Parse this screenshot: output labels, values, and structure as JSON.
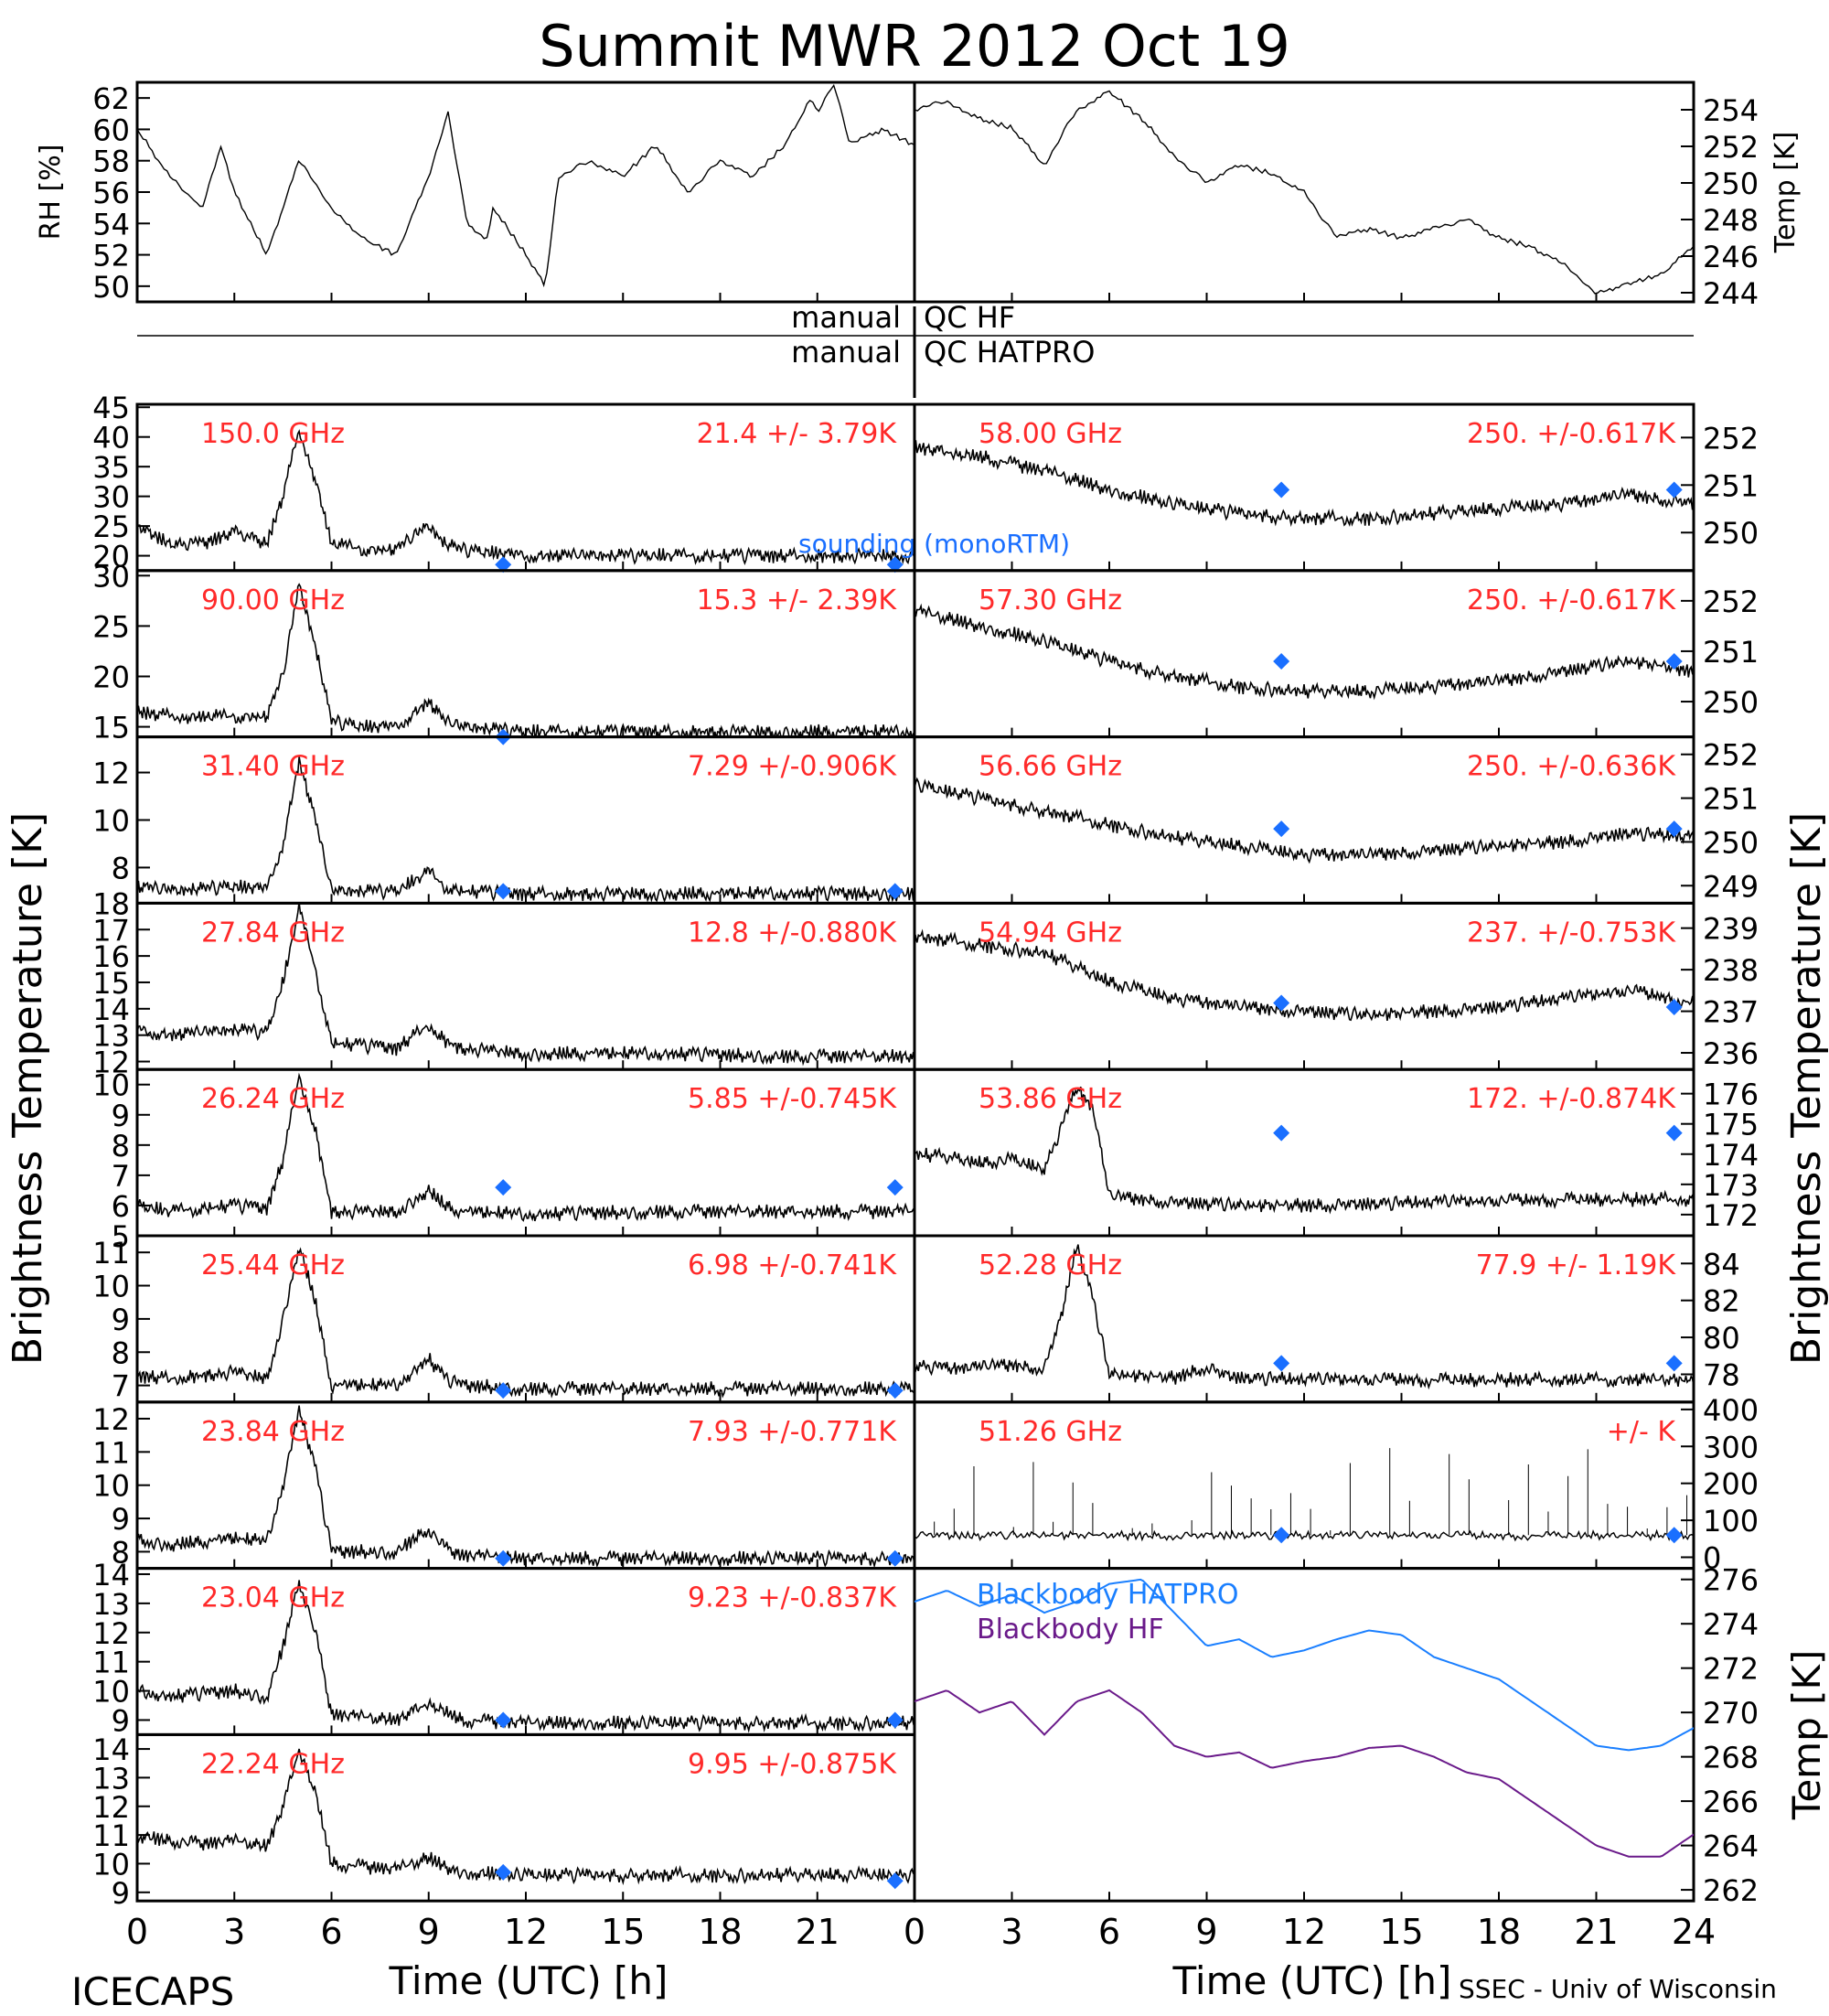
{
  "title": "Summit MWR 2012 Oct 19",
  "footer_left": "ICECAPS",
  "footer_right": "SSEC - Univ of Wisconsin",
  "xlabel": "Time (UTC) [h]",
  "left_ylabel": "Brightness Temperature [K]",
  "right_ylabel": "Brightness Temperature [K]",
  "qc_left": [
    "manual",
    "manual"
  ],
  "qc_right": [
    "QC HF",
    "QC HATPRO"
  ],
  "colors": {
    "label_red": "#ff2a2a",
    "sounding_blue": "#1a6fff",
    "hatpro_blue": "#1a7fff",
    "hf_purple": "#6a1a8a",
    "trace": "#000000"
  },
  "chart_data": [
    {
      "type": "line",
      "panel": "rh",
      "ylabel": "RH [%]",
      "ylim": [
        49,
        63
      ],
      "yticks": [
        50,
        52,
        54,
        56,
        58,
        60,
        62
      ],
      "xlim": [
        0,
        24
      ],
      "x": [
        0,
        1,
        2,
        2.6,
        3,
        4,
        5,
        6,
        7,
        8,
        9,
        9.6,
        10.2,
        10.8,
        11,
        12,
        12.6,
        13,
        14,
        15,
        16,
        17,
        18,
        19,
        20,
        20.8,
        21,
        21.5,
        22,
        23,
        24
      ],
      "values": [
        60,
        57,
        55,
        59,
        56,
        52,
        58,
        55,
        53,
        52,
        57,
        61,
        54,
        53,
        55,
        52,
        50,
        57,
        58,
        57,
        59,
        56,
        58,
        57,
        59,
        62,
        61,
        63,
        59,
        60,
        59
      ]
    },
    {
      "type": "line",
      "panel": "temp",
      "ylabel": "Temp [K]",
      "ylim": [
        243.5,
        255.5
      ],
      "yticks": [
        244,
        246,
        248,
        250,
        252,
        254
      ],
      "xlim": [
        0,
        24
      ],
      "x": [
        0,
        1,
        2,
        3,
        4,
        5,
        6,
        7,
        8,
        9,
        10,
        11,
        12,
        13,
        14,
        15,
        16,
        17,
        18,
        19,
        20,
        21,
        22,
        23,
        24
      ],
      "values": [
        254,
        254.5,
        253.5,
        253,
        251,
        254,
        255,
        253.5,
        251.5,
        250,
        251,
        250.5,
        249.5,
        247,
        247.5,
        247,
        247.5,
        248,
        247,
        246.5,
        245.5,
        244,
        244.5,
        245,
        246.5
      ]
    },
    {
      "type": "line",
      "channel": "150.0 GHz",
      "stats": "21.4 +/- 3.79K",
      "annotation": "sounding (monoRTM)",
      "ylim": [
        17.5,
        45.5
      ],
      "yticks": [
        20,
        25,
        30,
        35,
        40,
        45
      ],
      "xlim": [
        0,
        24
      ],
      "x": [
        0,
        1,
        2,
        3,
        4,
        4.5,
        5,
        5.5,
        6,
        7,
        8,
        9,
        9.5,
        10,
        12,
        16,
        20,
        24
      ],
      "values": [
        25,
        22,
        22,
        24,
        22,
        30,
        41,
        33,
        22,
        21,
        21,
        25,
        22,
        21,
        20,
        20,
        20,
        20
      ],
      "sounding_x": [
        11.3,
        23.4
      ],
      "sounding_y": [
        18.5,
        18.5
      ]
    },
    {
      "type": "line",
      "channel": "90.00 GHz",
      "stats": "15.3 +/- 2.39K",
      "ylim": [
        14,
        30.5
      ],
      "yticks": [
        15,
        20,
        25,
        30
      ],
      "xlim": [
        0,
        24
      ],
      "x": [
        0,
        1,
        2,
        3,
        4,
        4.5,
        5,
        5.5,
        6,
        7,
        8,
        9,
        9.5,
        10,
        12,
        16,
        20,
        24
      ],
      "values": [
        16.5,
        16,
        16,
        16,
        16,
        20,
        29,
        23,
        15.5,
        15,
        15,
        17.5,
        15.5,
        15,
        14.5,
        14.5,
        14.5,
        14.5
      ],
      "sounding_x": [
        11.3
      ],
      "sounding_y": [
        14
      ]
    },
    {
      "type": "line",
      "channel": "31.40 GHz",
      "stats": "7.29 +/-0.906K",
      "ylim": [
        6.5,
        13.5
      ],
      "yticks": [
        8,
        10,
        12
      ],
      "xlim": [
        0,
        24
      ],
      "x": [
        0,
        1,
        2,
        3,
        4,
        4.5,
        5,
        5.5,
        6,
        7,
        8,
        9,
        9.5,
        10,
        12,
        16,
        20,
        24
      ],
      "values": [
        7.2,
        7,
        7.1,
        7.2,
        7.1,
        9,
        12.5,
        10,
        7,
        7,
        7,
        7.8,
        7.2,
        7,
        6.9,
        6.9,
        6.9,
        6.9
      ],
      "sounding_x": [
        11.3,
        23.4
      ],
      "sounding_y": [
        7,
        7
      ]
    },
    {
      "type": "line",
      "channel": "27.84 GHz",
      "stats": "12.8 +/-0.880K",
      "ylim": [
        11.7,
        18
      ],
      "yticks": [
        12,
        13,
        14,
        15,
        16,
        17,
        18
      ],
      "xlim": [
        0,
        24
      ],
      "x": [
        0,
        1,
        2,
        3,
        4,
        4.5,
        5,
        5.5,
        6,
        7,
        8,
        9,
        9.5,
        10,
        12,
        16,
        20,
        24
      ],
      "values": [
        13.2,
        13,
        13.1,
        13.2,
        13.1,
        15,
        17.8,
        15.5,
        12.7,
        12.6,
        12.5,
        13.4,
        12.8,
        12.5,
        12.3,
        12.3,
        12.2,
        12.2
      ]
    },
    {
      "type": "line",
      "channel": "26.24 GHz",
      "stats": "5.85 +/-0.745K",
      "ylim": [
        5,
        10.5
      ],
      "yticks": [
        5,
        6,
        7,
        8,
        9,
        10
      ],
      "xlim": [
        0,
        24
      ],
      "x": [
        0,
        1,
        2,
        3,
        4,
        4.5,
        5,
        5.5,
        6,
        7,
        8,
        9,
        9.5,
        10,
        12,
        16,
        20,
        24
      ],
      "values": [
        6,
        5.8,
        5.9,
        6,
        5.9,
        7.5,
        10.3,
        8.5,
        5.8,
        5.8,
        5.8,
        6.5,
        6,
        5.8,
        5.7,
        5.8,
        5.8,
        5.8
      ],
      "sounding_x": [
        11.3,
        23.4
      ],
      "sounding_y": [
        6.6,
        6.6
      ]
    },
    {
      "type": "line",
      "channel": "25.44 GHz",
      "stats": "6.98 +/-0.741K",
      "ylim": [
        6.5,
        11.5
      ],
      "yticks": [
        7,
        8,
        9,
        10,
        11
      ],
      "xlim": [
        0,
        24
      ],
      "x": [
        0,
        1,
        2,
        3,
        4,
        4.5,
        5,
        5.5,
        6,
        7,
        8,
        9,
        9.5,
        10,
        12,
        16,
        20,
        24
      ],
      "values": [
        7.3,
        7.2,
        7.3,
        7.4,
        7.2,
        9,
        11.2,
        9.5,
        7,
        7,
        7,
        7.8,
        7.2,
        7,
        6.9,
        6.9,
        6.9,
        6.9
      ],
      "sounding_x": [
        11.3,
        23.4
      ],
      "sounding_y": [
        6.85,
        6.85
      ]
    },
    {
      "type": "line",
      "channel": "23.84 GHz",
      "stats": "7.93 +/-0.771K",
      "ylim": [
        7.5,
        12.5
      ],
      "yticks": [
        8,
        9,
        10,
        11,
        12
      ],
      "xlim": [
        0,
        24
      ],
      "x": [
        0,
        1,
        2,
        3,
        4,
        4.5,
        5,
        5.5,
        6,
        7,
        8,
        9,
        9.5,
        10,
        12,
        16,
        20,
        24
      ],
      "values": [
        8.4,
        8.2,
        8.3,
        8.4,
        8.3,
        10,
        12.3,
        10.5,
        8,
        8,
        8,
        8.7,
        8.1,
        7.9,
        7.8,
        7.8,
        7.8,
        7.8
      ],
      "sounding_x": [
        11.3,
        23.4
      ],
      "sounding_y": [
        7.8,
        7.8
      ]
    },
    {
      "type": "line",
      "channel": "23.04 GHz",
      "stats": "9.23 +/-0.837K",
      "ylim": [
        8.5,
        14.2
      ],
      "yticks": [
        9,
        10,
        11,
        12,
        13,
        14
      ],
      "xlim": [
        0,
        24
      ],
      "x": [
        0,
        1,
        2,
        3,
        4,
        4.5,
        5,
        5.5,
        6,
        7,
        8,
        9,
        9.5,
        10,
        12,
        16,
        20,
        24
      ],
      "values": [
        10,
        9.8,
        9.9,
        10,
        9.8,
        11.5,
        13.8,
        12,
        9.2,
        9.1,
        9,
        9.6,
        9.3,
        9,
        8.9,
        8.9,
        8.9,
        8.9
      ],
      "sounding_x": [
        11.3,
        23.4
      ],
      "sounding_y": [
        9,
        9
      ]
    },
    {
      "type": "line",
      "channel": "22.24 GHz",
      "stats": "9.95 +/-0.875K",
      "ylim": [
        8.7,
        14.5
      ],
      "yticks": [
        9,
        10,
        11,
        12,
        13,
        14
      ],
      "xlim": [
        0,
        24
      ],
      "x": [
        0,
        1,
        2,
        3,
        4,
        4.5,
        5,
        5.5,
        6,
        7,
        8,
        9,
        9.5,
        10,
        12,
        16,
        20,
        24
      ],
      "values": [
        11,
        10.8,
        10.7,
        10.8,
        10.6,
        12,
        14,
        12.5,
        10,
        9.9,
        9.8,
        10.2,
        9.9,
        9.7,
        9.6,
        9.6,
        9.6,
        9.6
      ],
      "sounding_x": [
        11.3,
        23.4
      ],
      "sounding_y": [
        9.7,
        9.4
      ]
    },
    {
      "type": "line",
      "channel": "58.00 GHz",
      "stats": "250. +/-0.617K",
      "ylim": [
        249.2,
        252.7
      ],
      "yticks": [
        250,
        251,
        252
      ],
      "xlim": [
        0,
        24
      ],
      "x": [
        0,
        2,
        4,
        6,
        8,
        10,
        12,
        14,
        16,
        18,
        20,
        22,
        24
      ],
      "values": [
        251.8,
        251.6,
        251.3,
        250.9,
        250.6,
        250.4,
        250.3,
        250.3,
        250.4,
        250.5,
        250.6,
        250.8,
        250.6
      ],
      "sounding_x": [
        11.3,
        23.4
      ],
      "sounding_y": [
        250.9,
        250.9
      ]
    },
    {
      "type": "line",
      "channel": "57.30 GHz",
      "stats": "250. +/-0.617K",
      "ylim": [
        249.3,
        252.6
      ],
      "yticks": [
        250,
        251,
        252
      ],
      "xlim": [
        0,
        24
      ],
      "x": [
        0,
        2,
        4,
        6,
        8,
        10,
        12,
        14,
        16,
        18,
        20,
        22,
        24
      ],
      "values": [
        251.8,
        251.5,
        251.2,
        250.8,
        250.5,
        250.3,
        250.2,
        250.2,
        250.3,
        250.4,
        250.6,
        250.8,
        250.6
      ],
      "sounding_x": [
        11.3,
        23.4
      ],
      "sounding_y": [
        250.8,
        250.8
      ]
    },
    {
      "type": "line",
      "channel": "56.66 GHz",
      "stats": "250. +/-0.636K",
      "ylim": [
        248.6,
        252.4
      ],
      "yticks": [
        249,
        250,
        251,
        252
      ],
      "xlim": [
        0,
        24
      ],
      "x": [
        0,
        2,
        4,
        6,
        8,
        10,
        12,
        14,
        16,
        18,
        20,
        22,
        24
      ],
      "values": [
        251.3,
        251,
        250.7,
        250.4,
        250.1,
        249.9,
        249.7,
        249.7,
        249.8,
        249.9,
        250,
        250.2,
        250.1
      ],
      "sounding_x": [
        11.3,
        23.4
      ],
      "sounding_y": [
        250.3,
        250.3
      ]
    },
    {
      "type": "line",
      "channel": "54.94 GHz",
      "stats": "237. +/-0.753K",
      "ylim": [
        235.6,
        239.6
      ],
      "yticks": [
        236,
        237,
        238,
        239
      ],
      "xlim": [
        0,
        24
      ],
      "x": [
        0,
        2,
        4,
        6,
        8,
        10,
        12,
        14,
        16,
        18,
        20,
        22,
        24
      ],
      "values": [
        238.8,
        238.6,
        238.4,
        237.7,
        237.3,
        237.1,
        237,
        236.9,
        237,
        237.1,
        237.3,
        237.5,
        237.2
      ],
      "sounding_x": [
        11.3,
        23.4
      ],
      "sounding_y": [
        237.2,
        237.1
      ]
    },
    {
      "type": "line",
      "channel": "53.86 GHz",
      "stats": "172. +/-0.874K",
      "ylim": [
        171.3,
        176.8
      ],
      "yticks": [
        172,
        173,
        174,
        175,
        176
      ],
      "xlim": [
        0,
        24
      ],
      "x": [
        0,
        1,
        2,
        3,
        4,
        4.5,
        5,
        5.5,
        6,
        7,
        8,
        10,
        12,
        16,
        20,
        24
      ],
      "values": [
        174,
        173.9,
        173.7,
        173.8,
        173.5,
        174.8,
        176.2,
        175.5,
        172.6,
        172.5,
        172.4,
        172.3,
        172.3,
        172.4,
        172.5,
        172.5
      ],
      "sounding_x": [
        11.3,
        23.4
      ],
      "sounding_y": [
        174.7,
        174.7
      ]
    },
    {
      "type": "line",
      "channel": "52.28 GHz",
      "stats": "77.9 +/- 1.19K",
      "ylim": [
        76.5,
        85.5
      ],
      "yticks": [
        78,
        80,
        82,
        84
      ],
      "xlim": [
        0,
        24
      ],
      "x": [
        0,
        1,
        2,
        3,
        4,
        4.5,
        5,
        5.5,
        6,
        7,
        8,
        9,
        9.5,
        10,
        12,
        16,
        20,
        24
      ],
      "values": [
        78.5,
        78.3,
        78.4,
        78.5,
        78.3,
        81,
        85,
        82,
        78,
        77.9,
        77.8,
        78.4,
        78,
        77.8,
        77.7,
        77.7,
        77.7,
        77.7
      ],
      "sounding_x": [
        11.3,
        23.4
      ],
      "sounding_y": [
        78.6,
        78.6
      ]
    },
    {
      "type": "scatter",
      "channel": "51.26 GHz",
      "stats": "+/-         K",
      "ylim": [
        -30,
        420
      ],
      "yticks": [
        0,
        100,
        200,
        300,
        400
      ],
      "xlim": [
        0,
        24
      ],
      "x": [
        0,
        2,
        4,
        6,
        8,
        10,
        12,
        14,
        16,
        18,
        20,
        22,
        24
      ],
      "values": [
        60,
        58,
        60,
        59,
        58,
        60,
        58,
        59,
        60,
        58,
        59,
        60,
        58
      ],
      "sounding_x": [
        11.3,
        23.4
      ],
      "sounding_y": [
        60,
        60
      ]
    },
    {
      "type": "line",
      "panel": "blackbody",
      "ylabel": "Temp [K]",
      "ylim": [
        261.5,
        276.5
      ],
      "yticks": [
        262,
        264,
        266,
        268,
        270,
        272,
        274,
        276
      ],
      "xlim": [
        0,
        24
      ],
      "series": [
        {
          "name": "Blackbody HATPRO",
          "x": [
            0,
            1,
            2,
            3,
            4,
            5,
            6,
            7,
            8,
            9,
            10,
            11,
            12,
            13,
            14,
            15,
            16,
            17,
            18,
            19,
            20,
            21,
            22,
            23,
            24
          ],
          "values": [
            275,
            275.5,
            274.8,
            275.3,
            274.5,
            275,
            275.8,
            276,
            274.5,
            273,
            273.3,
            272.5,
            272.8,
            273.3,
            273.7,
            273.5,
            272.5,
            272,
            271.5,
            270.5,
            269.5,
            268.5,
            268.3,
            268.5,
            269.3
          ]
        },
        {
          "name": "Blackbody HF",
          "x": [
            0,
            1,
            2,
            3,
            4,
            5,
            6,
            7,
            8,
            9,
            10,
            11,
            12,
            13,
            14,
            15,
            16,
            17,
            18,
            19,
            20,
            21,
            22,
            23,
            24
          ],
          "values": [
            270.5,
            271,
            270,
            270.5,
            269,
            270.5,
            271,
            270,
            268.5,
            268,
            268.2,
            267.5,
            267.8,
            268,
            268.4,
            268.5,
            268,
            267.3,
            267,
            266,
            265,
            264,
            263.5,
            263.5,
            264.5
          ]
        }
      ]
    }
  ]
}
